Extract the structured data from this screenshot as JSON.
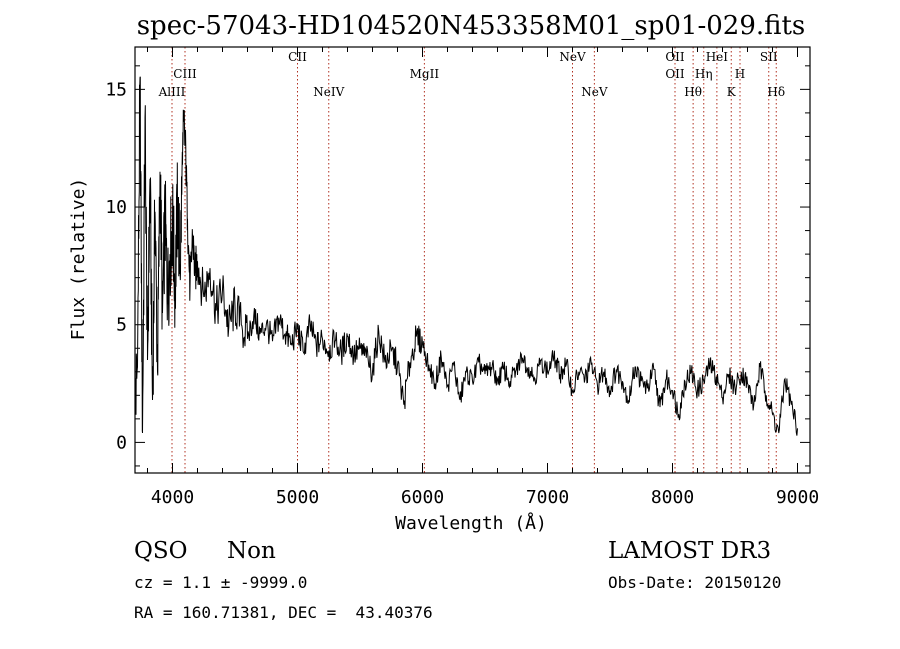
{
  "chart_data": {
    "type": "line",
    "title": "spec-57043-HD104520N453358M01_sp01-029.fits",
    "xlabel": "Wavelength (Å)",
    "ylabel": "Flux (relative)",
    "xlim": [
      3700,
      9100
    ],
    "ylim": [
      -1.3,
      16.8
    ],
    "xticks": [
      4000,
      5000,
      6000,
      7000,
      8000,
      9000
    ],
    "xtick_labels": [
      "4000",
      "5000",
      "6000",
      "7000",
      "8000",
      "9000"
    ],
    "yticks": [
      0,
      5,
      10,
      15
    ],
    "ytick_labels": [
      "0",
      "5",
      "10",
      "15"
    ],
    "series": [
      {
        "name": "flux",
        "x": [
          3700,
          3720,
          3740,
          3760,
          3780,
          3800,
          3820,
          3840,
          3860,
          3880,
          3900,
          3920,
          3940,
          3960,
          3980,
          4000,
          4020,
          4040,
          4060,
          4080,
          4100,
          4120,
          4140,
          4160,
          4180,
          4200,
          4250,
          4300,
          4350,
          4400,
          4450,
          4500,
          4550,
          4600,
          4650,
          4700,
          4750,
          4800,
          4850,
          4900,
          4950,
          5000,
          5050,
          5100,
          5150,
          5200,
          5250,
          5300,
          5350,
          5400,
          5450,
          5500,
          5550,
          5600,
          5650,
          5700,
          5750,
          5800,
          5850,
          5900,
          5950,
          6000,
          6050,
          6100,
          6150,
          6200,
          6250,
          6300,
          6350,
          6400,
          6450,
          6500,
          6550,
          6600,
          6650,
          6700,
          6750,
          6800,
          6850,
          6900,
          6950,
          7000,
          7050,
          7100,
          7150,
          7200,
          7250,
          7300,
          7350,
          7400,
          7450,
          7500,
          7550,
          7600,
          7650,
          7700,
          7750,
          7800,
          7850,
          7900,
          7950,
          8000,
          8050,
          8100,
          8150,
          8200,
          8250,
          8300,
          8350,
          8400,
          8450,
          8500,
          8550,
          8600,
          8650,
          8700,
          8750,
          8800,
          8850,
          8900,
          8950,
          9000
        ],
        "y": [
          1.5,
          3.2,
          15.5,
          0.4,
          13.8,
          3.5,
          11.2,
          1.8,
          9.8,
          3.0,
          11.5,
          5.5,
          9.6,
          6.2,
          8.0,
          9.4,
          6.5,
          10.2,
          7.4,
          11.8,
          13.2,
          9.5,
          6.5,
          8.8,
          7.2,
          7.7,
          6.2,
          7.4,
          5.6,
          6.5,
          4.9,
          5.8,
          5.0,
          4.4,
          5.4,
          4.6,
          5.0,
          4.3,
          5.3,
          4.6,
          4.2,
          4.8,
          3.8,
          5.0,
          4.1,
          4.4,
          3.9,
          4.3,
          3.8,
          4.5,
          3.7,
          4.0,
          3.6,
          3.0,
          4.7,
          3.4,
          3.9,
          3.3,
          1.6,
          3.4,
          4.5,
          4.2,
          3.3,
          2.5,
          3.6,
          2.4,
          3.3,
          1.8,
          3.0,
          2.6,
          3.4,
          2.9,
          3.2,
          2.7,
          3.1,
          2.6,
          3.1,
          3.6,
          3.2,
          2.7,
          3.5,
          3.0,
          3.6,
          2.9,
          3.3,
          2.2,
          3.0,
          2.7,
          3.3,
          2.4,
          3.0,
          2.2,
          3.1,
          2.6,
          1.8,
          3.2,
          2.6,
          2.3,
          3.1,
          1.5,
          2.7,
          2.2,
          1.2,
          2.6,
          3.0,
          2.2,
          2.6,
          3.3,
          2.8,
          1.9,
          2.9,
          2.3,
          3.0,
          2.5,
          1.6,
          3.2,
          2.0,
          1.2,
          0.4,
          2.7,
          1.6,
          0.6
        ]
      }
    ],
    "line_markers": [
      {
        "label": "AlIII",
        "x": 3996,
        "row": 3
      },
      {
        "label": "CIII",
        "x": 4100,
        "row": 2
      },
      {
        "label": "CII",
        "x": 5000,
        "row": 1
      },
      {
        "label": "NeIV",
        "x": 5250,
        "row": 3
      },
      {
        "label": "MgII",
        "x": 6015,
        "row": 2
      },
      {
        "label": "NeV",
        "x": 7200,
        "row": 1
      },
      {
        "label": "NeV",
        "x": 7375,
        "row": 3
      },
      {
        "label": "OII",
        "x": 8020,
        "row": 1
      },
      {
        "label": "OII",
        "x": 8020,
        "row": 2
      },
      {
        "label": "Hθ",
        "x": 8165,
        "row": 3
      },
      {
        "label": "Hη",
        "x": 8250,
        "row": 2
      },
      {
        "label": "HeI",
        "x": 8355,
        "row": 1
      },
      {
        "label": "K",
        "x": 8470,
        "row": 3
      },
      {
        "label": "H",
        "x": 8540,
        "row": 2
      },
      {
        "label": "SII",
        "x": 8770,
        "row": 1
      },
      {
        "label": "Hδ",
        "x": 8830,
        "row": 3
      }
    ]
  },
  "info": {
    "class_label": "QSO",
    "subclass_label": "Non",
    "survey_label": "LAMOST DR3",
    "cz_text": "cz = 1.1 ± -9999.0",
    "obs_date_text": "Obs-Date: 20150120",
    "coords_text": "RA = 160.71381, DEC =  43.40376"
  },
  "colors": {
    "axis": "#000000",
    "spectrum": "#000000",
    "marker_line": "#b03020",
    "background": "#ffffff"
  }
}
